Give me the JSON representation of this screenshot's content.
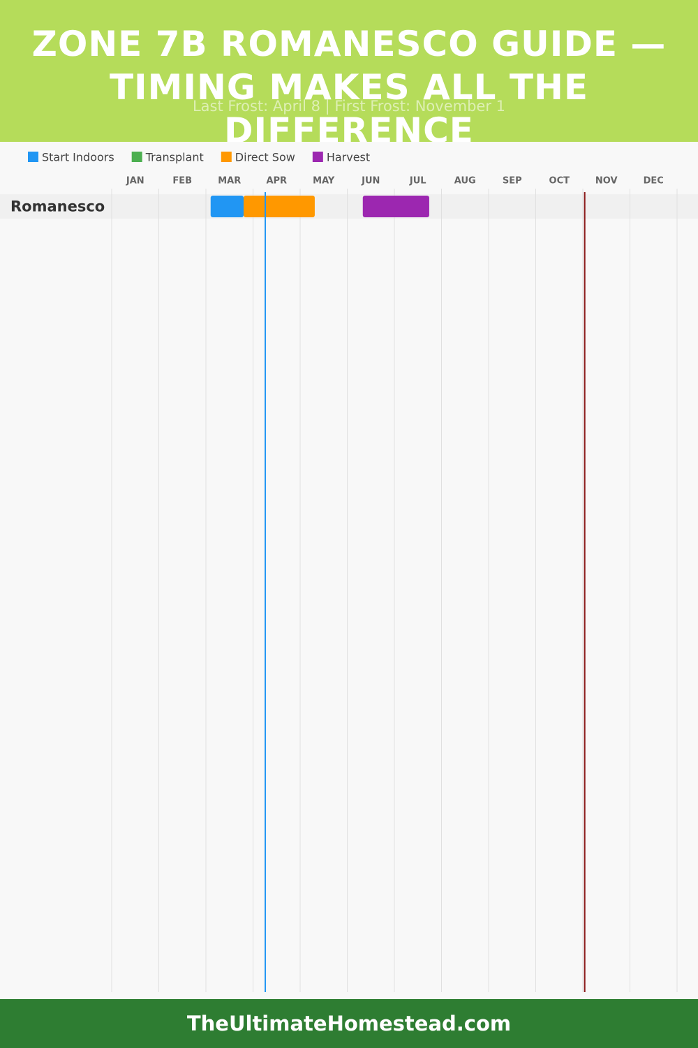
{
  "chart_data": {
    "type": "gantt",
    "title": "ZONE 7B ROMANESCO GUIDE — TIMING MAKES ALL THE DIFFERENCE",
    "subtitle": "Last Frost: April 8 | First Frost: November 1",
    "categories": [
      "JAN",
      "FEB",
      "MAR",
      "APR",
      "MAY",
      "JUN",
      "JUL",
      "AUG",
      "SEP",
      "OCT",
      "NOV",
      "DEC"
    ],
    "xlim": [
      0,
      12
    ],
    "grid": true,
    "rows": [
      "Romanesco"
    ],
    "series": [
      {
        "name": "Start Indoors",
        "color": "#2196f3",
        "start": [
          2.1
        ],
        "end": [
          2.8
        ]
      },
      {
        "name": "Transplant",
        "color": "#4caf50",
        "start": [
          null
        ],
        "end": [
          null
        ]
      },
      {
        "name": "Direct Sow",
        "color": "#ff9800",
        "start": [
          2.8
        ],
        "end": [
          4.31
        ]
      },
      {
        "name": "Harvest",
        "color": "#9c27b0",
        "start": [
          5.33
        ],
        "end": [
          6.74
        ]
      }
    ],
    "markers": [
      {
        "value": 3.26,
        "color": "#2196f3"
      },
      {
        "value": 10.04,
        "color": "#8b1a1a"
      }
    ]
  },
  "footer": "TheUltimateHomestead.com"
}
